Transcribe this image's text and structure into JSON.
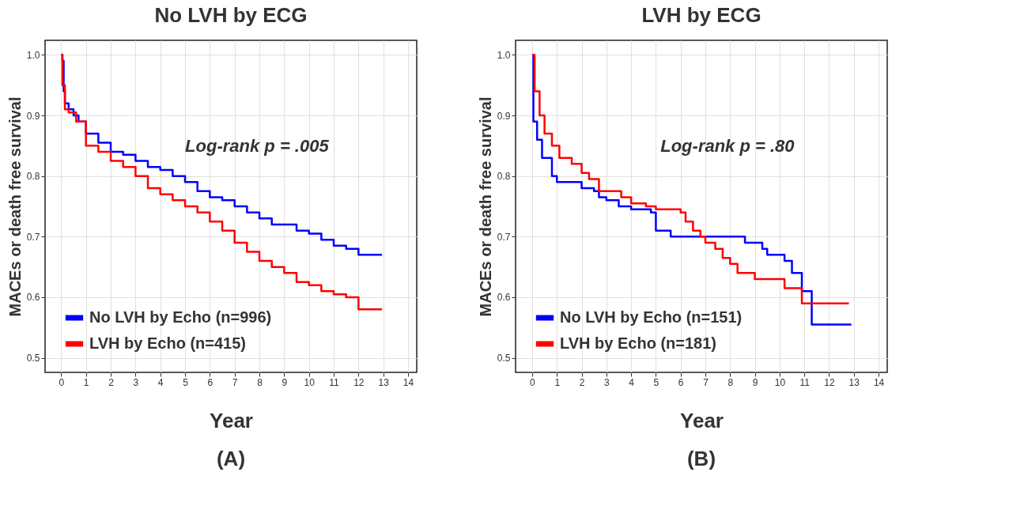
{
  "chart_data": [
    {
      "type": "step",
      "title": "No LVH by ECG",
      "xlabel": "Year",
      "ylabel": "MACEs or death free survival",
      "annotations": [
        "Log-rank p = .005",
        "(A)"
      ],
      "xlim": [
        -0.65,
        14.35
      ],
      "ylim": [
        0.476,
        1.024
      ],
      "xticks": [
        0,
        1,
        2,
        3,
        4,
        5,
        6,
        7,
        8,
        9,
        10,
        11,
        12,
        13,
        14
      ],
      "yticks": [
        0.5,
        0.6,
        0.7,
        0.8,
        0.9,
        {
          "value": 1,
          "label": "1.0"
        }
      ],
      "grid": true,
      "legend": "bottom left",
      "series": [
        {
          "name": "No LVH by Echo (n=996)",
          "color": "#0000ff",
          "x": [
            0,
            0.05,
            0.1,
            0.15,
            0.3,
            0.5,
            0.7,
            1,
            1.5,
            2,
            2.5,
            3,
            3.5,
            4,
            4.5,
            5,
            5.5,
            6,
            6.5,
            7,
            7.5,
            8,
            8.5,
            9,
            9.5,
            10,
            10.5,
            11,
            11.5,
            12,
            12.95
          ],
          "values": [
            1.0,
            0.99,
            0.94,
            0.92,
            0.91,
            0.9,
            0.89,
            0.87,
            0.855,
            0.84,
            0.835,
            0.825,
            0.815,
            0.81,
            0.8,
            0.79,
            0.775,
            0.765,
            0.76,
            0.75,
            0.74,
            0.73,
            0.72,
            0.72,
            0.71,
            0.705,
            0.695,
            0.685,
            0.68,
            0.67,
            0.67
          ]
        },
        {
          "name": "LVH by Echo (n=415)",
          "color": "#ff0000",
          "x": [
            0,
            0.05,
            0.15,
            0.3,
            0.6,
            1,
            1.5,
            2,
            2.5,
            3,
            3.5,
            4,
            4.5,
            5,
            5.5,
            6,
            6.5,
            7,
            7.5,
            8,
            8.5,
            9,
            9.5,
            10,
            10.5,
            11,
            11.5,
            12,
            12.95
          ],
          "values": [
            1.0,
            0.95,
            0.91,
            0.905,
            0.89,
            0.85,
            0.84,
            0.825,
            0.815,
            0.8,
            0.78,
            0.77,
            0.76,
            0.75,
            0.74,
            0.725,
            0.71,
            0.69,
            0.675,
            0.66,
            0.65,
            0.64,
            0.625,
            0.62,
            0.61,
            0.605,
            0.6,
            0.58,
            0.58
          ]
        }
      ]
    },
    {
      "type": "step",
      "title": "LVH by ECG",
      "xlabel": "Year",
      "ylabel": "MACEs or death free survival",
      "annotations": [
        "Log-rank p = .80",
        "(B)"
      ],
      "xlim": [
        -0.67,
        14.35
      ],
      "ylim": [
        0.476,
        1.024
      ],
      "xticks": [
        0,
        1,
        2,
        3,
        4,
        5,
        6,
        7,
        8,
        9,
        10,
        11,
        12,
        13,
        14
      ],
      "yticks": [
        0.5,
        0.6,
        0.7,
        0.8,
        0.9,
        {
          "value": 1,
          "label": "1.0"
        }
      ],
      "grid": true,
      "legend": "bottom left",
      "series": [
        {
          "name": "No LVH by Echo (n=151)",
          "color": "#0000ff",
          "x": [
            0,
            0.05,
            0.2,
            0.4,
            0.8,
            1,
            2,
            2.5,
            2.7,
            3,
            3.5,
            4,
            4.8,
            5,
            5.6,
            8.6,
            9.3,
            9.5,
            10.2,
            10.5,
            10.9,
            11.3,
            12.9
          ],
          "values": [
            1.0,
            0.89,
            0.86,
            0.83,
            0.8,
            0.79,
            0.78,
            0.775,
            0.765,
            0.76,
            0.75,
            0.745,
            0.74,
            0.71,
            0.7,
            0.69,
            0.68,
            0.67,
            0.66,
            0.64,
            0.61,
            0.555,
            0.555
          ]
        },
        {
          "name": "LVH by Echo (n=181)",
          "color": "#ff0000",
          "x": [
            0,
            0.1,
            0.3,
            0.5,
            0.8,
            1.1,
            1.6,
            2,
            2.3,
            2.7,
            3.6,
            4,
            4.6,
            5,
            6,
            6.2,
            6.5,
            6.8,
            7,
            7.4,
            7.7,
            8,
            8.3,
            9,
            10.2,
            10.9,
            12.8
          ],
          "values": [
            1.0,
            0.94,
            0.9,
            0.87,
            0.85,
            0.83,
            0.82,
            0.805,
            0.795,
            0.775,
            0.765,
            0.755,
            0.75,
            0.745,
            0.74,
            0.725,
            0.71,
            0.7,
            0.69,
            0.68,
            0.665,
            0.655,
            0.64,
            0.63,
            0.615,
            0.59,
            0.59
          ]
        }
      ]
    }
  ]
}
